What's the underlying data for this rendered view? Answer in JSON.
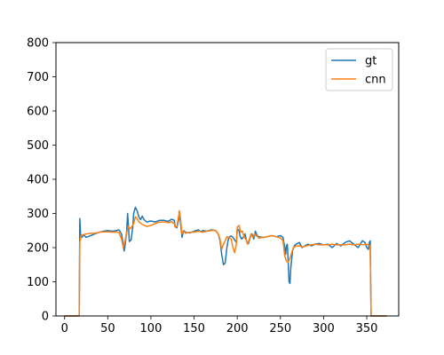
{
  "chart_data": {
    "type": "line",
    "xlim": [
      -10,
      387
    ],
    "ylim": [
      0,
      800
    ],
    "xticks": [
      0,
      50,
      100,
      150,
      200,
      250,
      300,
      350
    ],
    "yticks": [
      0,
      100,
      200,
      300,
      400,
      500,
      600,
      700,
      800
    ],
    "grid": false,
    "legend_position": "top-right",
    "series": [
      {
        "name": "gt",
        "color": "#1f77b4",
        "points": [
          [
            0,
            0
          ],
          [
            17,
            0
          ],
          [
            17.6,
            285
          ],
          [
            18.5,
            240
          ],
          [
            20,
            230
          ],
          [
            22,
            238
          ],
          [
            25,
            230
          ],
          [
            30,
            235
          ],
          [
            35,
            240
          ],
          [
            40,
            245
          ],
          [
            45,
            248
          ],
          [
            50,
            250
          ],
          [
            55,
            248
          ],
          [
            60,
            250
          ],
          [
            63,
            252
          ],
          [
            66,
            240
          ],
          [
            68,
            208
          ],
          [
            69,
            190
          ],
          [
            70,
            205
          ],
          [
            72,
            250
          ],
          [
            73,
            300
          ],
          [
            74,
            260
          ],
          [
            75,
            218
          ],
          [
            77,
            222
          ],
          [
            79,
            260
          ],
          [
            80,
            300
          ],
          [
            82,
            318
          ],
          [
            84,
            308
          ],
          [
            86,
            290
          ],
          [
            88,
            282
          ],
          [
            90,
            292
          ],
          [
            92,
            282
          ],
          [
            95,
            275
          ],
          [
            100,
            278
          ],
          [
            105,
            275
          ],
          [
            110,
            280
          ],
          [
            115,
            280
          ],
          [
            120,
            277
          ],
          [
            124,
            283
          ],
          [
            127,
            280
          ],
          [
            128,
            262
          ],
          [
            130,
            258
          ],
          [
            132,
            280
          ],
          [
            133,
            302
          ],
          [
            134,
            280
          ],
          [
            136,
            230
          ],
          [
            138,
            250
          ],
          [
            140,
            245
          ],
          [
            145,
            243
          ],
          [
            150,
            248
          ],
          [
            155,
            252
          ],
          [
            158,
            246
          ],
          [
            160,
            250
          ],
          [
            165,
            248
          ],
          [
            170,
            252
          ],
          [
            175,
            250
          ],
          [
            178,
            240
          ],
          [
            180,
            220
          ],
          [
            182,
            180
          ],
          [
            184,
            150
          ],
          [
            186,
            155
          ],
          [
            188,
            200
          ],
          [
            190,
            230
          ],
          [
            193,
            234
          ],
          [
            195,
            230
          ],
          [
            197,
            222
          ],
          [
            199,
            215
          ],
          [
            200,
            255
          ],
          [
            202,
            250
          ],
          [
            203,
            235
          ],
          [
            205,
            225
          ],
          [
            207,
            230
          ],
          [
            209,
            240
          ],
          [
            211,
            218
          ],
          [
            213,
            212
          ],
          [
            215,
            230
          ],
          [
            217,
            240
          ],
          [
            219,
            225
          ],
          [
            221,
            248
          ],
          [
            223,
            235
          ],
          [
            225,
            232
          ],
          [
            230,
            230
          ],
          [
            235,
            232
          ],
          [
            240,
            235
          ],
          [
            245,
            232
          ],
          [
            250,
            235
          ],
          [
            253,
            230
          ],
          [
            255,
            200
          ],
          [
            256,
            180
          ],
          [
            257,
            205
          ],
          [
            258,
            210
          ],
          [
            259,
            160
          ],
          [
            260,
            100
          ],
          [
            261,
            95
          ],
          [
            262,
            140
          ],
          [
            264,
            190
          ],
          [
            266,
            205
          ],
          [
            268,
            210
          ],
          [
            272,
            215
          ],
          [
            275,
            200
          ],
          [
            278,
            205
          ],
          [
            282,
            210
          ],
          [
            286,
            205
          ],
          [
            290,
            210
          ],
          [
            295,
            212
          ],
          [
            300,
            208
          ],
          [
            305,
            210
          ],
          [
            310,
            200
          ],
          [
            315,
            212
          ],
          [
            320,
            205
          ],
          [
            325,
            215
          ],
          [
            330,
            220
          ],
          [
            335,
            210
          ],
          [
            340,
            200
          ],
          [
            345,
            220
          ],
          [
            348,
            215
          ],
          [
            350,
            200
          ],
          [
            352,
            195
          ],
          [
            353,
            215
          ],
          [
            354,
            220
          ],
          [
            355,
            0
          ],
          [
            373,
            0
          ]
        ]
      },
      {
        "name": "cnn",
        "color": "#ff7f0e",
        "points": [
          [
            0,
            0
          ],
          [
            17,
            0
          ],
          [
            17.6,
            215
          ],
          [
            19,
            235
          ],
          [
            22,
            238
          ],
          [
            25,
            240
          ],
          [
            30,
            242
          ],
          [
            35,
            242
          ],
          [
            40,
            245
          ],
          [
            45,
            246
          ],
          [
            50,
            246
          ],
          [
            55,
            245
          ],
          [
            60,
            246
          ],
          [
            63,
            244
          ],
          [
            66,
            225
          ],
          [
            68,
            200
          ],
          [
            70,
            220
          ],
          [
            72,
            245
          ],
          [
            74,
            262
          ],
          [
            76,
            255
          ],
          [
            78,
            262
          ],
          [
            80,
            270
          ],
          [
            82,
            290
          ],
          [
            84,
            285
          ],
          [
            86,
            275
          ],
          [
            88,
            272
          ],
          [
            90,
            268
          ],
          [
            95,
            262
          ],
          [
            100,
            265
          ],
          [
            105,
            270
          ],
          [
            110,
            275
          ],
          [
            115,
            275
          ],
          [
            120,
            273
          ],
          [
            124,
            276
          ],
          [
            127,
            270
          ],
          [
            128,
            260
          ],
          [
            130,
            262
          ],
          [
            132,
            290
          ],
          [
            133,
            308
          ],
          [
            134,
            290
          ],
          [
            136,
            240
          ],
          [
            138,
            248
          ],
          [
            140,
            242
          ],
          [
            145,
            245
          ],
          [
            150,
            245
          ],
          [
            155,
            248
          ],
          [
            160,
            245
          ],
          [
            165,
            248
          ],
          [
            170,
            250
          ],
          [
            175,
            250
          ],
          [
            178,
            240
          ],
          [
            180,
            225
          ],
          [
            182,
            195
          ],
          [
            184,
            210
          ],
          [
            186,
            220
          ],
          [
            188,
            232
          ],
          [
            190,
            230
          ],
          [
            193,
            225
          ],
          [
            195,
            200
          ],
          [
            197,
            185
          ],
          [
            199,
            210
          ],
          [
            200,
            260
          ],
          [
            202,
            265
          ],
          [
            204,
            245
          ],
          [
            206,
            248
          ],
          [
            208,
            230
          ],
          [
            210,
            225
          ],
          [
            212,
            210
          ],
          [
            214,
            225
          ],
          [
            216,
            240
          ],
          [
            218,
            230
          ],
          [
            220,
            240
          ],
          [
            222,
            235
          ],
          [
            225,
            228
          ],
          [
            230,
            230
          ],
          [
            235,
            232
          ],
          [
            240,
            235
          ],
          [
            245,
            232
          ],
          [
            250,
            228
          ],
          [
            253,
            220
          ],
          [
            255,
            175
          ],
          [
            257,
            160
          ],
          [
            259,
            158
          ],
          [
            261,
            168
          ],
          [
            263,
            185
          ],
          [
            265,
            200
          ],
          [
            268,
            205
          ],
          [
            272,
            205
          ],
          [
            275,
            202
          ],
          [
            280,
            205
          ],
          [
            285,
            208
          ],
          [
            290,
            210
          ],
          [
            295,
            208
          ],
          [
            300,
            208
          ],
          [
            305,
            208
          ],
          [
            310,
            210
          ],
          [
            315,
            208
          ],
          [
            320,
            208
          ],
          [
            325,
            208
          ],
          [
            330,
            210
          ],
          [
            335,
            208
          ],
          [
            340,
            210
          ],
          [
            345,
            208
          ],
          [
            350,
            210
          ],
          [
            354,
            205
          ],
          [
            355,
            0
          ],
          [
            373,
            0
          ]
        ]
      }
    ]
  }
}
